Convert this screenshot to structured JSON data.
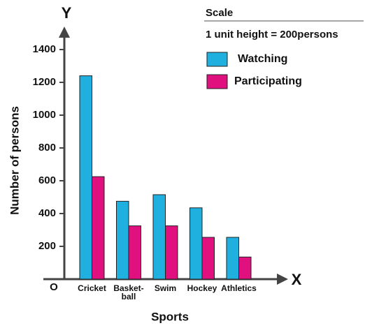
{
  "chart_data": {
    "type": "bar",
    "y_axis_letter": "Y",
    "x_axis_letter": "X",
    "origin_label": "O",
    "y_label": "Number of persons",
    "x_label": "Sports",
    "scale_title": "Scale",
    "scale_text": "1 unit height = 200persons",
    "categories": [
      "Cricket",
      "Basket-\nball",
      "Swim",
      "Hockey",
      "Athletics"
    ],
    "series": [
      {
        "name": "Watching",
        "color": "#1fb0e0",
        "values": [
          1240,
          475,
          515,
          435,
          255
        ]
      },
      {
        "name": "Participating",
        "color": "#e0107e",
        "values": [
          625,
          325,
          325,
          255,
          135
        ]
      }
    ],
    "ylim": [
      0,
      1500
    ],
    "yticks": [
      200,
      400,
      600,
      800,
      1000,
      1200,
      1400
    ]
  }
}
